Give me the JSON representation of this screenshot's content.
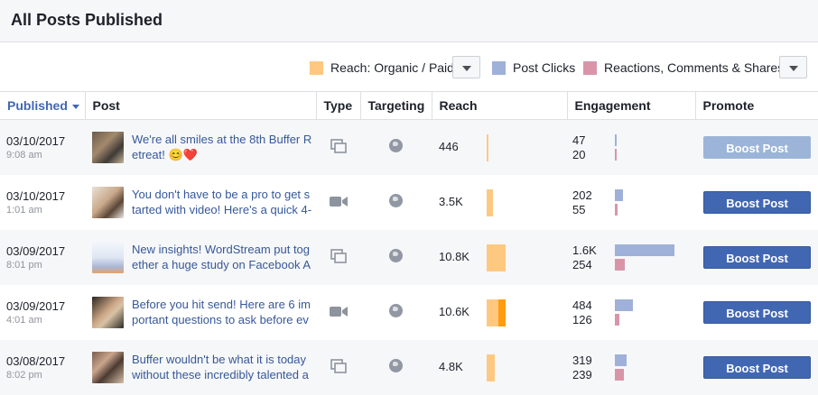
{
  "header": {
    "title": "All Posts Published"
  },
  "legend": {
    "reach_label": "Reach: Organic / Paid",
    "clicks_label": "Post Clicks",
    "reactions_label": "Reactions, Comments & Shares",
    "colors": {
      "reach_organic": "#ffc880",
      "reach_paid": "#ff9c0f",
      "clicks": "#9fb1d8",
      "reactions": "#d995a8"
    }
  },
  "columns": {
    "published": "Published",
    "post": "Post",
    "type": "Type",
    "targeting": "Targeting",
    "reach": "Reach",
    "engagement": "Engagement",
    "promote": "Promote"
  },
  "rows": [
    {
      "date": "03/10/2017",
      "time": "9:08 am",
      "text": "We're all smiles at the 8th Buffer Retreat! 😊❤️",
      "type_icon": "photo-album-icon",
      "reach": "446",
      "reach_organic_frac": 0.05,
      "reach_paid_frac": 0,
      "clicks": "47",
      "reactions": "20",
      "clicks_frac": 0.02,
      "reactions_frac": 0.01,
      "boost": "Boost Post",
      "boost_disabled": true
    },
    {
      "date": "03/10/2017",
      "time": "1:01 am",
      "text": "You don't have to be a pro to get started with video! Here's a quick 4-",
      "type_icon": "video-camera-icon",
      "reach": "3.5K",
      "reach_organic_frac": 0.35,
      "reach_paid_frac": 0,
      "clicks": "202",
      "reactions": "55",
      "clicks_frac": 0.13,
      "reactions_frac": 0.04,
      "boost": "Boost Post",
      "boost_disabled": false
    },
    {
      "date": "03/09/2017",
      "time": "8:01 pm",
      "text": "New insights! WordStream put together a huge study on Facebook A",
      "type_icon": "photo-album-icon",
      "reach": "10.8K",
      "reach_organic_frac": 1.0,
      "reach_paid_frac": 0,
      "clicks": "1.6K",
      "reactions": "254",
      "clicks_frac": 1.0,
      "reactions_frac": 0.16,
      "boost": "Boost Post",
      "boost_disabled": false
    },
    {
      "date": "03/09/2017",
      "time": "4:01 am",
      "text": "Before you hit send! Here are 6 important questions to ask before ev",
      "type_icon": "video-camera-icon",
      "reach": "10.6K",
      "reach_organic_frac": 0.6,
      "reach_paid_frac": 0.4,
      "clicks": "484",
      "reactions": "126",
      "clicks_frac": 0.3,
      "reactions_frac": 0.08,
      "boost": "Boost Post",
      "boost_disabled": false
    },
    {
      "date": "03/08/2017",
      "time": "8:02 pm",
      "text": "Buffer wouldn't be what it is today without these incredibly talented a",
      "type_icon": "photo-album-icon",
      "reach": "4.8K",
      "reach_organic_frac": 0.45,
      "reach_paid_frac": 0,
      "clicks": "319",
      "reactions": "239",
      "clicks_frac": 0.2,
      "reactions_frac": 0.15,
      "boost": "Boost Post",
      "boost_disabled": false
    }
  ]
}
